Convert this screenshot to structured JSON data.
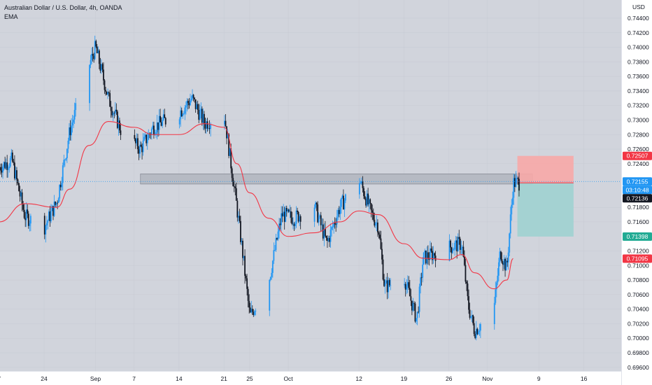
{
  "legend": {
    "symbol_title": "Australian Dollar / U.S. Dollar, 4h, OANDA",
    "indicator": "EMA"
  },
  "currency_label": "USD",
  "colors": {
    "background": "#d1d4dc",
    "up_candle": "#2196f3",
    "down_candle": "#131722",
    "ema_line": "#f23645",
    "current_price_line": "#2196f3",
    "zone_fill": "#b2b5be",
    "zone_border": "#787b86",
    "stop_zone": "#f7a9a7",
    "target_zone": "#9ed1d0",
    "tag_red": "#f23645",
    "tag_teal": "#22ab94",
    "tag_blue": "#2196f3",
    "tag_dark": "#131722"
  },
  "price_tags": [
    {
      "label": "0.72507",
      "color": "red"
    },
    {
      "label": "0.72155",
      "color": "blue"
    },
    {
      "label": "03:10:48",
      "color": "blue"
    },
    {
      "label": "0.72136",
      "color": "dark"
    },
    {
      "label": "0.71398",
      "color": "teal"
    },
    {
      "label": "0.71095",
      "color": "red"
    }
  ],
  "chart_data": {
    "type": "candlestick",
    "title": "Australian Dollar / U.S. Dollar, 4h, OANDA",
    "ylabel": "USD",
    "ylim": [
      0.6955,
      0.7465
    ],
    "y_ticks": [
      "0.69600",
      "0.69800",
      "0.70000",
      "0.70200",
      "0.70400",
      "0.70600",
      "0.70800",
      "0.71000",
      "0.71200",
      "0.71600",
      "0.71800",
      "0.72400",
      "0.72600",
      "0.72800",
      "0.73000",
      "0.73200",
      "0.73400",
      "0.73600",
      "0.73800",
      "0.74000",
      "0.74200",
      "0.74400"
    ],
    "x_ticks": [
      "7",
      "24",
      "Sep",
      "7",
      "14",
      "21",
      "25",
      "Oct",
      "12",
      "19",
      "26",
      "Nov",
      "9",
      "16"
    ],
    "series": [
      {
        "name": "EMA",
        "color": "#f23645"
      }
    ],
    "waypoints": [
      {
        "date": "Aug 17",
        "close": 0.7235
      },
      {
        "date": "Aug 19",
        "close": 0.7245
      },
      {
        "date": "Aug 21",
        "close": 0.7168
      },
      {
        "date": "Aug 24",
        "close": 0.7152
      },
      {
        "date": "Aug 26",
        "close": 0.7188
      },
      {
        "date": "Aug 28",
        "close": 0.7285
      },
      {
        "date": "Aug 31",
        "close": 0.7375
      },
      {
        "date": "Sep 1",
        "close": 0.74
      },
      {
        "date": "Sep 3",
        "close": 0.733
      },
      {
        "date": "Sep 5",
        "close": 0.7285
      },
      {
        "date": "Sep 8",
        "close": 0.726
      },
      {
        "date": "Sep 10",
        "close": 0.729
      },
      {
        "date": "Sep 14",
        "close": 0.731
      },
      {
        "date": "Sep 16",
        "close": 0.733
      },
      {
        "date": "Sep 18",
        "close": 0.7295
      },
      {
        "date": "Sep 21",
        "close": 0.731
      },
      {
        "date": "Sep 23",
        "close": 0.718
      },
      {
        "date": "Sep 24",
        "close": 0.711
      },
      {
        "date": "Sep 25",
        "close": 0.703
      },
      {
        "date": "Sep 28",
        "close": 0.708
      },
      {
        "date": "Sep 30",
        "close": 0.717
      },
      {
        "date": "Oct 2",
        "close": 0.7165
      },
      {
        "date": "Oct 5",
        "close": 0.7185
      },
      {
        "date": "Oct 7",
        "close": 0.713
      },
      {
        "date": "Oct 9",
        "close": 0.718
      },
      {
        "date": "Oct 12",
        "close": 0.722
      },
      {
        "date": "Oct 14",
        "close": 0.717
      },
      {
        "date": "Oct 15",
        "close": 0.7155
      },
      {
        "date": "Oct 16",
        "close": 0.707
      },
      {
        "date": "Oct 19",
        "close": 0.7085
      },
      {
        "date": "Oct 21",
        "close": 0.7025
      },
      {
        "date": "Oct 22",
        "close": 0.711
      },
      {
        "date": "Oct 26",
        "close": 0.7125
      },
      {
        "date": "Oct 28",
        "close": 0.713
      },
      {
        "date": "Oct 29",
        "close": 0.7045
      },
      {
        "date": "Oct 30",
        "close": 0.701
      },
      {
        "date": "Nov 2",
        "close": 0.704
      },
      {
        "date": "Nov 3",
        "close": 0.712
      },
      {
        "date": "Nov 4",
        "close": 0.7095
      },
      {
        "date": "Nov 5",
        "close": 0.72136
      }
    ],
    "ema_values": [
      {
        "date": "Aug 17",
        "value": 0.716
      },
      {
        "date": "Aug 21",
        "value": 0.7185
      },
      {
        "date": "Aug 26",
        "value": 0.718
      },
      {
        "date": "Aug 28",
        "value": 0.7205
      },
      {
        "date": "Aug 31",
        "value": 0.7265
      },
      {
        "date": "Sep 3",
        "value": 0.7298
      },
      {
        "date": "Sep 7",
        "value": 0.729
      },
      {
        "date": "Sep 10",
        "value": 0.728
      },
      {
        "date": "Sep 14",
        "value": 0.728
      },
      {
        "date": "Sep 18",
        "value": 0.7295
      },
      {
        "date": "Sep 21",
        "value": 0.729
      },
      {
        "date": "Sep 23",
        "value": 0.724
      },
      {
        "date": "Sep 25",
        "value": 0.72
      },
      {
        "date": "Sep 28",
        "value": 0.7165
      },
      {
        "date": "Oct 1",
        "value": 0.714
      },
      {
        "date": "Oct 5",
        "value": 0.7145
      },
      {
        "date": "Oct 9",
        "value": 0.716
      },
      {
        "date": "Oct 12",
        "value": 0.7175
      },
      {
        "date": "Oct 15",
        "value": 0.717
      },
      {
        "date": "Oct 19",
        "value": 0.713
      },
      {
        "date": "Oct 22",
        "value": 0.711
      },
      {
        "date": "Oct 26",
        "value": 0.7108
      },
      {
        "date": "Oct 28",
        "value": 0.7115
      },
      {
        "date": "Oct 30",
        "value": 0.709
      },
      {
        "date": "Nov 2",
        "value": 0.7068
      },
      {
        "date": "Nov 4",
        "value": 0.708
      },
      {
        "date": "Nov 5",
        "value": 0.71095
      }
    ],
    "resistance_zone": {
      "from": "Sep 8",
      "to": "Nov 8",
      "low": 0.7212,
      "high": 0.7226
    },
    "position": {
      "from": "Nov 5",
      "to": "Nov 12",
      "entry": 0.72136,
      "stop": 0.72507,
      "target": 0.71398
    }
  }
}
